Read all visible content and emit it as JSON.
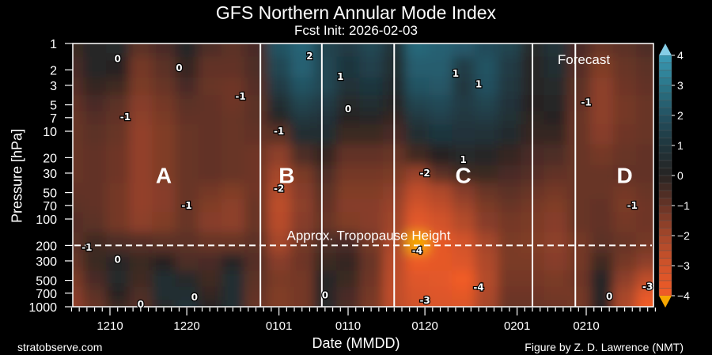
{
  "chart_data": {
    "type": "heatmap",
    "subtype": "filled-contour",
    "title": "GFS Northern Annular Mode Index",
    "subtitle": "Fcst Init: 2026-02-03",
    "xlabel": "Date (MMDD)",
    "ylabel": "Pressure [hPa]",
    "xlim": [
      "2025-12-05",
      "2026-02-19"
    ],
    "ylim": [
      1000,
      1
    ],
    "y_scale": "log",
    "y_inverted": true,
    "x_ticks": [
      {
        "date": "2025-12-10",
        "label": "1210"
      },
      {
        "date": "2025-12-20",
        "label": "1220"
      },
      {
        "date": "2026-01-01",
        "label": "0101"
      },
      {
        "date": "2026-01-10",
        "label": "0110"
      },
      {
        "date": "2026-01-20",
        "label": "0120"
      },
      {
        "date": "2026-02-01",
        "label": "0201"
      },
      {
        "date": "2026-02-10",
        "label": "0210"
      }
    ],
    "y_ticks": [
      1,
      2,
      3,
      5,
      7,
      10,
      20,
      30,
      50,
      70,
      100,
      200,
      300,
      500,
      700,
      1000
    ],
    "colorbar": {
      "range": [
        -4,
        4
      ],
      "ticks": [
        "4",
        "3",
        "2",
        "1",
        "0",
        "−1",
        "−2",
        "−3",
        "−4"
      ],
      "extend": "both",
      "colors": {
        "-4": "#f25c27",
        "-3": "#d2532a",
        "-2": "#a5472b",
        "-1": "#683426",
        "0": "#272423",
        "1": "#1f353c",
        "2": "#245262",
        "3": "#2b7689",
        "4": "#3b9bb6",
        "over": "#85cde6",
        "under": "#f7a600"
      }
    },
    "grid_dates": [
      "2025-12-05",
      "2025-12-08",
      "2025-12-11",
      "2025-12-14",
      "2025-12-17",
      "2025-12-20",
      "2025-12-23",
      "2025-12-26",
      "2025-12-29",
      "2026-01-01",
      "2026-01-04",
      "2026-01-07",
      "2026-01-10",
      "2026-01-13",
      "2026-01-16",
      "2026-01-19",
      "2026-01-22",
      "2026-01-25",
      "2026-01-28",
      "2026-01-31",
      "2026-02-03",
      "2026-02-06",
      "2026-02-09",
      "2026-02-12",
      "2026-02-15",
      "2026-02-18"
    ],
    "grid_pressure": [
      1,
      2,
      3,
      5,
      7,
      10,
      20,
      30,
      50,
      70,
      100,
      200,
      300,
      500,
      700,
      1000
    ],
    "values": [
      [
        -0.3,
        0.2,
        0.3,
        -0.8,
        -0.5,
        0.2,
        -0.6,
        -0.8,
        -0.5,
        2.0,
        2.5,
        1.5,
        1.2,
        1.6,
        0.8,
        2.6,
        2.4,
        2.2,
        1.8,
        1.5,
        0.3,
        0.8,
        -0.5,
        -1.0,
        -0.8,
        -0.6
      ],
      [
        -0.5,
        0.1,
        0.0,
        -1.2,
        -0.8,
        -0.2,
        -0.9,
        -0.9,
        -0.6,
        1.6,
        2.4,
        1.6,
        1.0,
        1.4,
        0.6,
        2.3,
        2.3,
        1.3,
        2.0,
        1.2,
        0.2,
        0.5,
        -0.7,
        -1.4,
        -1.0,
        -0.8
      ],
      [
        -0.7,
        -0.2,
        -0.4,
        -1.3,
        -1.0,
        -0.5,
        -1.0,
        -1.1,
        -0.7,
        1.2,
        2.0,
        1.6,
        0.8,
        1.0,
        0.4,
        2.0,
        2.1,
        1.1,
        1.9,
        1.1,
        0.1,
        0.3,
        -0.8,
        -1.6,
        -1.1,
        -0.9
      ],
      [
        -0.9,
        -0.5,
        -0.8,
        -1.5,
        -1.2,
        -0.8,
        -0.9,
        -1.1,
        -0.8,
        0.6,
        1.5,
        1.2,
        0.3,
        0.6,
        0.2,
        1.5,
        1.7,
        1.2,
        1.5,
        0.9,
        0.0,
        0.1,
        -0.9,
        -1.6,
        -1.2,
        -1.0
      ],
      [
        -1.0,
        -0.7,
        -0.9,
        -1.6,
        -1.3,
        -0.9,
        -0.9,
        -1.0,
        -0.8,
        0.2,
        1.1,
        0.9,
        0.0,
        0.2,
        -0.2,
        1.1,
        1.4,
        1.1,
        1.2,
        0.7,
        -0.1,
        0.0,
        -1.0,
        -1.6,
        -1.2,
        -1.0
      ],
      [
        -1.0,
        -0.8,
        -1.0,
        -1.7,
        -1.4,
        -1.0,
        -0.9,
        -1.0,
        -0.9,
        -0.8,
        0.6,
        0.5,
        -0.3,
        -0.3,
        -0.5,
        0.6,
        1.0,
        0.9,
        0.8,
        0.4,
        -0.2,
        -0.2,
        -1.0,
        -1.5,
        -1.1,
        -1.0
      ],
      [
        -1.0,
        -0.9,
        -1.1,
        -1.7,
        -1.4,
        -1.0,
        -0.9,
        -1.0,
        -1.1,
        -1.6,
        -0.6,
        -0.2,
        -0.9,
        -0.9,
        -1.0,
        -0.4,
        0.0,
        0.3,
        0.2,
        -0.2,
        -0.5,
        -0.6,
        -1.0,
        -1.2,
        -1.0,
        -0.9
      ],
      [
        -1.0,
        -0.9,
        -1.1,
        -1.7,
        -1.4,
        -1.0,
        -0.9,
        -1.0,
        -1.1,
        -2.0,
        -1.3,
        -0.6,
        -1.2,
        -1.2,
        -1.3,
        -1.8,
        -0.8,
        -0.4,
        -0.3,
        -0.5,
        -0.7,
        -0.9,
        -1.0,
        -1.0,
        -0.9,
        -0.9
      ],
      [
        -0.9,
        -0.9,
        -1.2,
        -1.7,
        -1.5,
        -1.0,
        -1.2,
        -1.4,
        -1.1,
        -2.3,
        -1.5,
        -0.8,
        -1.4,
        -1.4,
        -1.6,
        -2.6,
        -2.2,
        -1.5,
        -1.0,
        -0.8,
        -1.0,
        -1.2,
        -1.0,
        -1.0,
        -1.2,
        -1.0
      ],
      [
        -0.8,
        -0.9,
        -1.2,
        -1.7,
        -1.5,
        -1.0,
        -1.4,
        -1.6,
        -1.0,
        -2.5,
        -1.6,
        -0.9,
        -1.5,
        -1.5,
        -1.8,
        -3.0,
        -2.6,
        -1.9,
        -1.3,
        -1.0,
        -1.2,
        -1.4,
        -1.0,
        -0.9,
        -1.3,
        -1.1
      ],
      [
        -0.7,
        -0.8,
        -1.2,
        -1.6,
        -1.4,
        -1.0,
        -1.5,
        -1.6,
        -1.0,
        -2.4,
        -1.5,
        -1.0,
        -1.4,
        -1.5,
        -1.9,
        -3.5,
        -3.0,
        -2.3,
        -1.5,
        -1.2,
        -1.3,
        -1.5,
        -1.0,
        -0.9,
        -1.2,
        -1.1
      ],
      [
        -0.8,
        -0.4,
        -0.6,
        -0.7,
        -0.8,
        -0.8,
        -1.0,
        -1.0,
        -0.8,
        -2.0,
        -1.2,
        -0.6,
        -0.5,
        -1.2,
        -2.2,
        -4.2,
        -3.6,
        -3.0,
        -2.0,
        -1.3,
        -1.4,
        -1.6,
        -1.2,
        -0.8,
        -1.0,
        -1.2
      ],
      [
        -1.0,
        -0.3,
        0.2,
        -0.3,
        0.0,
        -0.6,
        -0.5,
        0.2,
        -0.7,
        -1.5,
        -1.1,
        -0.3,
        -0.2,
        -1.0,
        -2.4,
        -3.8,
        -3.6,
        -3.3,
        -2.2,
        -1.3,
        -1.3,
        -1.5,
        -1.2,
        -0.4,
        -1.2,
        -1.6
      ],
      [
        -1.3,
        -0.5,
        0.3,
        -0.4,
        0.6,
        0.3,
        -0.4,
        0.6,
        -0.8,
        -1.3,
        -1.2,
        0.1,
        -0.3,
        -1.1,
        -2.5,
        -3.4,
        -3.5,
        -4.0,
        -2.3,
        -1.2,
        -1.2,
        -1.3,
        -1.1,
        0.2,
        -1.6,
        -2.5
      ],
      [
        -1.5,
        -0.8,
        0.0,
        -0.6,
        0.5,
        0.6,
        -0.2,
        0.5,
        -0.9,
        -1.4,
        -1.2,
        0.2,
        -0.5,
        -1.2,
        -2.6,
        -3.2,
        -3.4,
        -3.6,
        -2.2,
        -1.1,
        -1.1,
        -1.2,
        -1.2,
        0.2,
        -2.0,
        -3.5
      ],
      [
        -1.7,
        -1.0,
        -0.3,
        -0.7,
        0.3,
        0.8,
        0.0,
        0.6,
        -1.0,
        -1.4,
        -1.2,
        0.3,
        -0.6,
        -1.3,
        -2.5,
        -3.0,
        -3.2,
        -3.3,
        -2.0,
        -1.0,
        -1.0,
        -1.1,
        -1.2,
        0.0,
        -2.2,
        -4.0
      ]
    ],
    "contour_labels": [
      {
        "text": "0",
        "date": "2025-12-11",
        "p": 1.5
      },
      {
        "text": "0",
        "date": "2025-12-19",
        "p": 1.9
      },
      {
        "text": "-1",
        "date": "2025-12-12",
        "p": 6.9
      },
      {
        "text": "-1",
        "date": "2025-12-27",
        "p": 4
      },
      {
        "text": "-1",
        "date": "2025-12-20",
        "p": 70
      },
      {
        "text": "-1",
        "date": "2025-12-07",
        "p": 210
      },
      {
        "text": "0",
        "date": "2025-12-11",
        "p": 290
      },
      {
        "text": "0",
        "date": "2025-12-21",
        "p": 780
      },
      {
        "text": "0",
        "date": "2025-12-14",
        "p": 940
      },
      {
        "text": "2",
        "date": "2026-01-05",
        "p": 1.4
      },
      {
        "text": "-1",
        "date": "2026-01-01",
        "p": 10
      },
      {
        "text": "-2",
        "date": "2026-01-01",
        "p": 45
      },
      {
        "text": "1",
        "date": "2026-01-09",
        "p": 2.4
      },
      {
        "text": "0",
        "date": "2026-01-10",
        "p": 5.6
      },
      {
        "text": "0",
        "date": "2026-01-07",
        "p": 740
      },
      {
        "text": "1",
        "date": "2026-01-24",
        "p": 2.2
      },
      {
        "text": "1",
        "date": "2026-01-27",
        "p": 2.9
      },
      {
        "text": "1",
        "date": "2026-01-25",
        "p": 21
      },
      {
        "text": "-2",
        "date": "2026-01-20",
        "p": 30
      },
      {
        "text": "-4",
        "date": "2026-01-19",
        "p": 230
      },
      {
        "text": "-4",
        "date": "2026-01-27",
        "p": 600
      },
      {
        "text": "-3",
        "date": "2026-01-20",
        "p": 850
      },
      {
        "text": "-1",
        "date": "2026-02-10",
        "p": 4.7
      },
      {
        "text": "-1",
        "date": "2026-02-16",
        "p": 70
      },
      {
        "text": "0",
        "date": "2026-02-13",
        "p": 760
      },
      {
        "text": "-3",
        "date": "2026-02-18",
        "p": 590
      }
    ],
    "event_dividers": [
      "2025-12-29T14:00",
      "2026-01-06T14:00",
      "2026-01-16T00:00",
      "2026-02-03T00:00",
      "2026-02-08T14:00"
    ],
    "region_labels": [
      {
        "text": "A",
        "date": "2025-12-17",
        "p": 28
      },
      {
        "text": "B",
        "date": "2026-01-02",
        "p": 28
      },
      {
        "text": "C",
        "date": "2026-01-25",
        "p": 28
      },
      {
        "text": "D",
        "date": "2026-02-15",
        "p": 28
      }
    ],
    "tropopause": {
      "p": 200,
      "label": "Approx. Tropopause Height"
    },
    "forecast_label": "Forecast"
  },
  "credits": {
    "left": "stratobserve.com",
    "right": "Figure by Z. D. Lawrence (NMT)"
  }
}
